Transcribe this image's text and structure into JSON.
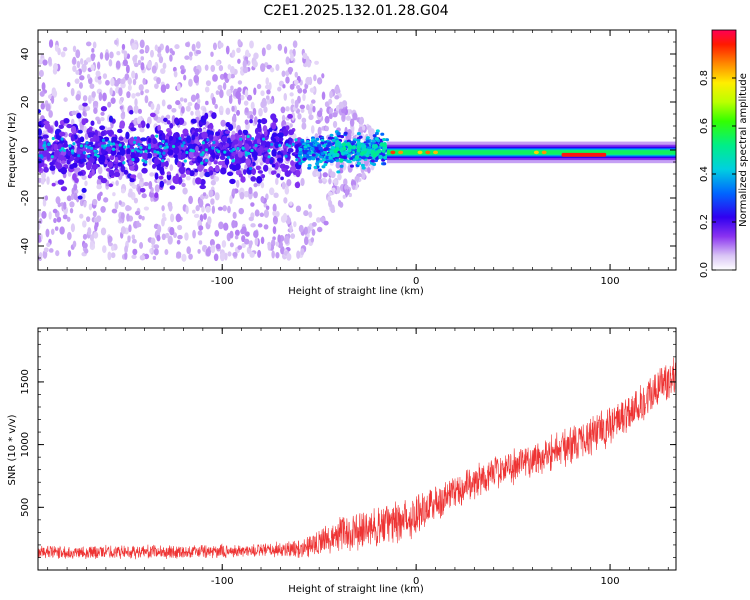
{
  "chart_data": [
    {
      "type": "heatmap",
      "title": "C2E1.2025.132.01.28.G04",
      "xlabel": "Height of straight line (km)",
      "ylabel": "Frequency (Hz)",
      "xlim": [
        -195,
        134
      ],
      "ylim": [
        -50,
        50
      ],
      "xticks": [
        -100,
        0,
        100
      ],
      "xtick_labels": [
        "-100",
        "0",
        "100"
      ],
      "yticks": [
        -40,
        -20,
        0,
        20,
        40
      ],
      "ytick_labels": [
        "-40",
        "-20",
        "0",
        "20",
        "40"
      ],
      "grid": false,
      "colorbar": {
        "label": "Normalized spectral amplitude",
        "range": [
          0,
          1
        ],
        "ticks": [
          0.0,
          0.2,
          0.4,
          0.6,
          0.8
        ],
        "tick_labels": [
          "0.0",
          "0.2",
          "0.4",
          "0.6",
          "0.8"
        ],
        "colormap": "rainbow"
      },
      "features": [
        {
          "x_range": [
            -195,
            -60
          ],
          "frequency_center": 0,
          "frequency_spread": 45,
          "amplitude": 0.15
        },
        {
          "x_range": [
            -60,
            -15
          ],
          "frequency_center": 0,
          "frequency_spread": 6,
          "amplitude": 0.35
        },
        {
          "x_range": [
            -15,
            134
          ],
          "frequency_center": -1,
          "frequency_spread": 3,
          "amplitude": 0.5
        },
        {
          "x_range": [
            -15,
            -8
          ],
          "frequency_center": -1,
          "amplitude": 0.9
        },
        {
          "x_range": [
            75,
            98
          ],
          "frequency_center": -2,
          "amplitude": 0.95
        }
      ]
    },
    {
      "type": "line",
      "xlabel": "Height of straight line (km)",
      "ylabel": "SNR (10 * v/v)",
      "xlim": [
        -195,
        134
      ],
      "ylim": [
        0,
        1930
      ],
      "xticks": [
        -100,
        0,
        100
      ],
      "xtick_labels": [
        "-100",
        "0",
        "100"
      ],
      "yticks": [
        500,
        1000,
        1500
      ],
      "ytick_labels": [
        "500",
        "1000",
        "1500"
      ],
      "grid": false,
      "line_color": "#ee3333",
      "x": [
        -195,
        -150,
        -110,
        -80,
        -60,
        -40,
        -20,
        -10,
        0,
        20,
        40,
        60,
        80,
        100,
        120,
        134
      ],
      "y": [
        140,
        145,
        145,
        155,
        170,
        280,
        340,
        380,
        450,
        620,
        780,
        880,
        1000,
        1150,
        1380,
        1580
      ],
      "noise_amplitude": [
        60,
        60,
        60,
        60,
        80,
        150,
        180,
        200,
        200,
        150,
        150,
        160,
        170,
        180,
        180,
        180
      ]
    }
  ]
}
